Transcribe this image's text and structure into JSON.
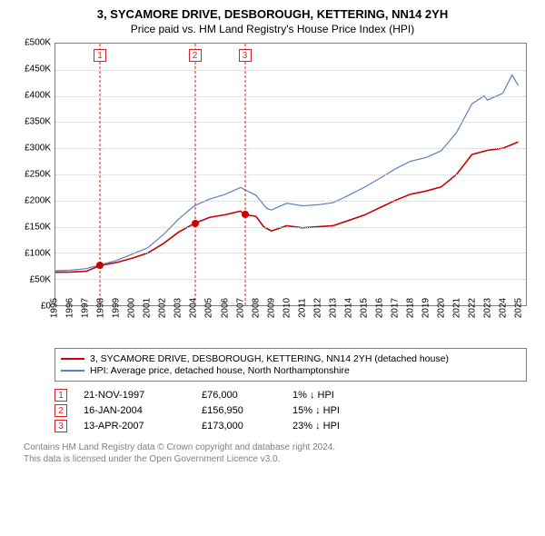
{
  "title_line1": "3, SYCAMORE DRIVE, DESBOROUGH, KETTERING, NN14 2YH",
  "title_line2": "Price paid vs. HM Land Registry's House Price Index (HPI)",
  "chart": {
    "type": "line",
    "background_color": "#ffffff",
    "grid_color": "#cccccc",
    "axis_color": "#808080",
    "y": {
      "min": 0,
      "max": 500000,
      "tick_step": 50000,
      "labels": [
        "£0",
        "£50K",
        "£100K",
        "£150K",
        "£200K",
        "£250K",
        "£300K",
        "£350K",
        "£400K",
        "£450K",
        "£500K"
      ]
    },
    "x": {
      "min": 1995,
      "max": 2025.5,
      "ticks": [
        1995,
        1996,
        1997,
        1998,
        1999,
        2000,
        2001,
        2002,
        2003,
        2004,
        2005,
        2006,
        2007,
        2008,
        2009,
        2010,
        2011,
        2012,
        2013,
        2014,
        2015,
        2016,
        2017,
        2018,
        2019,
        2020,
        2021,
        2022,
        2023,
        2024,
        2025
      ]
    },
    "series": [
      {
        "name": "property",
        "color": "#cc0000",
        "width": 1.6,
        "points": [
          [
            1995,
            63000
          ],
          [
            1996,
            63500
          ],
          [
            1997,
            65000
          ],
          [
            1997.9,
            76000
          ],
          [
            1999,
            82000
          ],
          [
            2000,
            90000
          ],
          [
            2001,
            100000
          ],
          [
            2002,
            118000
          ],
          [
            2003,
            140000
          ],
          [
            2004.05,
            156950
          ],
          [
            2005,
            168000
          ],
          [
            2006,
            173000
          ],
          [
            2007,
            180000
          ],
          [
            2007.28,
            173000
          ],
          [
            2008,
            170000
          ],
          [
            2008.5,
            150000
          ],
          [
            2009,
            142000
          ],
          [
            2010,
            152000
          ],
          [
            2011,
            148000
          ],
          [
            2012,
            150000
          ],
          [
            2013,
            152000
          ],
          [
            2014,
            162000
          ],
          [
            2015,
            172000
          ],
          [
            2016,
            186000
          ],
          [
            2017,
            200000
          ],
          [
            2018,
            212000
          ],
          [
            2019,
            218000
          ],
          [
            2020,
            226000
          ],
          [
            2021,
            250000
          ],
          [
            2022,
            288000
          ],
          [
            2023,
            296000
          ],
          [
            2024,
            300000
          ],
          [
            2025,
            312000
          ]
        ]
      },
      {
        "name": "hpi",
        "color": "#5b7fbf",
        "width": 1.2,
        "points": [
          [
            1995,
            66000
          ],
          [
            1996,
            67000
          ],
          [
            1997,
            70000
          ],
          [
            1998,
            78000
          ],
          [
            1999,
            86000
          ],
          [
            2000,
            98000
          ],
          [
            2001,
            110000
          ],
          [
            2002,
            135000
          ],
          [
            2003,
            165000
          ],
          [
            2004,
            190000
          ],
          [
            2005,
            203000
          ],
          [
            2006,
            212000
          ],
          [
            2007,
            225000
          ],
          [
            2008,
            210000
          ],
          [
            2008.7,
            185000
          ],
          [
            2009,
            182000
          ],
          [
            2010,
            195000
          ],
          [
            2011,
            190000
          ],
          [
            2012,
            192000
          ],
          [
            2013,
            196000
          ],
          [
            2014,
            210000
          ],
          [
            2015,
            225000
          ],
          [
            2016,
            242000
          ],
          [
            2017,
            260000
          ],
          [
            2018,
            275000
          ],
          [
            2019,
            282000
          ],
          [
            2020,
            295000
          ],
          [
            2021,
            330000
          ],
          [
            2022,
            385000
          ],
          [
            2022.8,
            400000
          ],
          [
            2023,
            392000
          ],
          [
            2024,
            405000
          ],
          [
            2024.6,
            440000
          ],
          [
            2025,
            420000
          ]
        ]
      }
    ],
    "sale_markers": [
      {
        "n": "1",
        "year": 1997.89,
        "price": 76000
      },
      {
        "n": "2",
        "year": 2004.04,
        "price": 156950
      },
      {
        "n": "3",
        "year": 2007.28,
        "price": 173000
      }
    ]
  },
  "legend": {
    "items": [
      {
        "color": "#cc0000",
        "label": "3, SYCAMORE DRIVE, DESBOROUGH, KETTERING, NN14 2YH (detached house)"
      },
      {
        "color": "#5b7fbf",
        "label": "HPI: Average price, detached house, North Northamptonshire"
      }
    ]
  },
  "sales": [
    {
      "n": "1",
      "date": "21-NOV-1997",
      "price": "£76,000",
      "delta": "1% ↓ HPI"
    },
    {
      "n": "2",
      "date": "16-JAN-2004",
      "price": "£156,950",
      "delta": "15% ↓ HPI"
    },
    {
      "n": "3",
      "date": "13-APR-2007",
      "price": "£173,000",
      "delta": "23% ↓ HPI"
    }
  ],
  "attribution": {
    "line1": "Contains HM Land Registry data © Crown copyright and database right 2024.",
    "line2": "This data is licensed under the Open Government Licence v3.0."
  }
}
